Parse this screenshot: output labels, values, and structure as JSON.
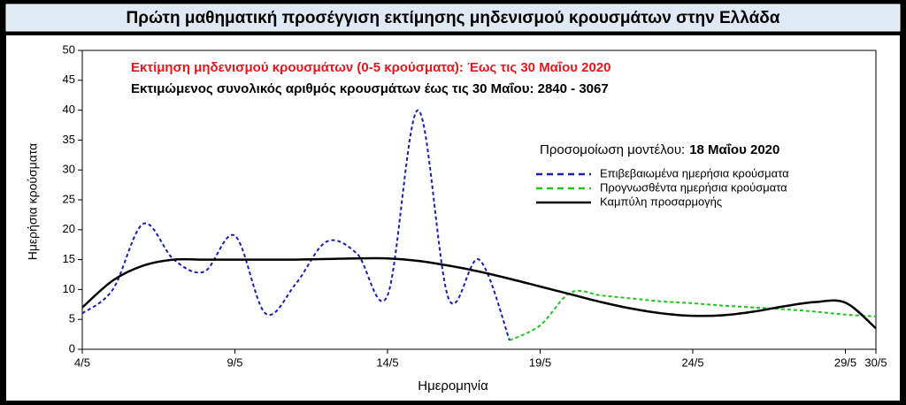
{
  "chart_data": {
    "type": "line",
    "title": "Πρώτη μαθηματική προσέγγιση εκτίμησης μηδενισμού κρουσμάτων στην Ελλάδα",
    "xlabel": "Ημερομηνία",
    "ylabel": "Ημερήσια κρούσματα",
    "annotations": [
      {
        "text": "Εκτίμηση μηδενισμού κρουσμάτων (0-5 κρούσματα):  Έως τις 30 Μαΐου 2020",
        "color": "#e8141c"
      },
      {
        "text": "Εκτιμώμενος συνολικός αριθμός κρουσμάτων έως τις 30 Μαΐου:  2840 - 3067",
        "color": "#000000"
      }
    ],
    "legend_title": "Προσομοίωση μοντέλου:",
    "legend_date": "18 Μαΐου 2020",
    "xlim": [
      4,
      30
    ],
    "xticks": [
      {
        "value": 4,
        "label": "4/5"
      },
      {
        "value": 9,
        "label": "9/5"
      },
      {
        "value": 14,
        "label": "14/5"
      },
      {
        "value": 19,
        "label": "19/5"
      },
      {
        "value": 24,
        "label": "24/5"
      },
      {
        "value": 29,
        "label": "29/5"
      },
      {
        "value": 30,
        "label": "30/5"
      }
    ],
    "ylim": [
      0,
      50
    ],
    "yticks": [
      0,
      5,
      10,
      15,
      20,
      25,
      30,
      35,
      40,
      45,
      50
    ],
    "grid": false,
    "series": [
      {
        "name": "Επιβεβαιωμένα ημερήσια κρούσματα",
        "color": "#1c1cb4",
        "dashed": true,
        "width": 2,
        "x": [
          4,
          5,
          6,
          7,
          8,
          9,
          10,
          11,
          12,
          13,
          14,
          15,
          16,
          17,
          18
        ],
        "values": [
          6,
          10,
          21,
          15,
          13,
          19,
          6,
          11,
          18,
          16,
          9,
          40,
          8.5,
          15,
          1.5
        ]
      },
      {
        "name": "Προγνωσθέντα ημερήσια κρούσματα",
        "color": "#1cc81c",
        "dashed": true,
        "width": 2,
        "x": [
          18,
          19,
          20,
          21,
          22,
          23,
          24,
          25,
          26,
          27,
          28,
          29,
          30
        ],
        "values": [
          1.5,
          4,
          9.5,
          9,
          8.5,
          8,
          7.7,
          7.3,
          7,
          6.7,
          6.3,
          5.8,
          5.5
        ]
      },
      {
        "name": "Καμπύλη προσαρμογής",
        "color": "#000000",
        "dashed": false,
        "width": 2.5,
        "x": [
          4,
          5,
          6,
          7,
          8,
          9,
          10,
          11,
          12,
          13,
          14,
          15,
          16,
          17,
          18,
          19,
          20,
          21,
          22,
          23,
          24,
          25,
          26,
          27,
          28,
          29,
          30
        ],
        "values": [
          7,
          11.5,
          14,
          15,
          15,
          15,
          15,
          15,
          15.1,
          15.2,
          15.2,
          14.8,
          14,
          13,
          11.8,
          10.5,
          9.2,
          7.9,
          6.8,
          6,
          5.6,
          5.7,
          6.3,
          7.2,
          7.9,
          7.8,
          3.5
        ]
      }
    ]
  }
}
